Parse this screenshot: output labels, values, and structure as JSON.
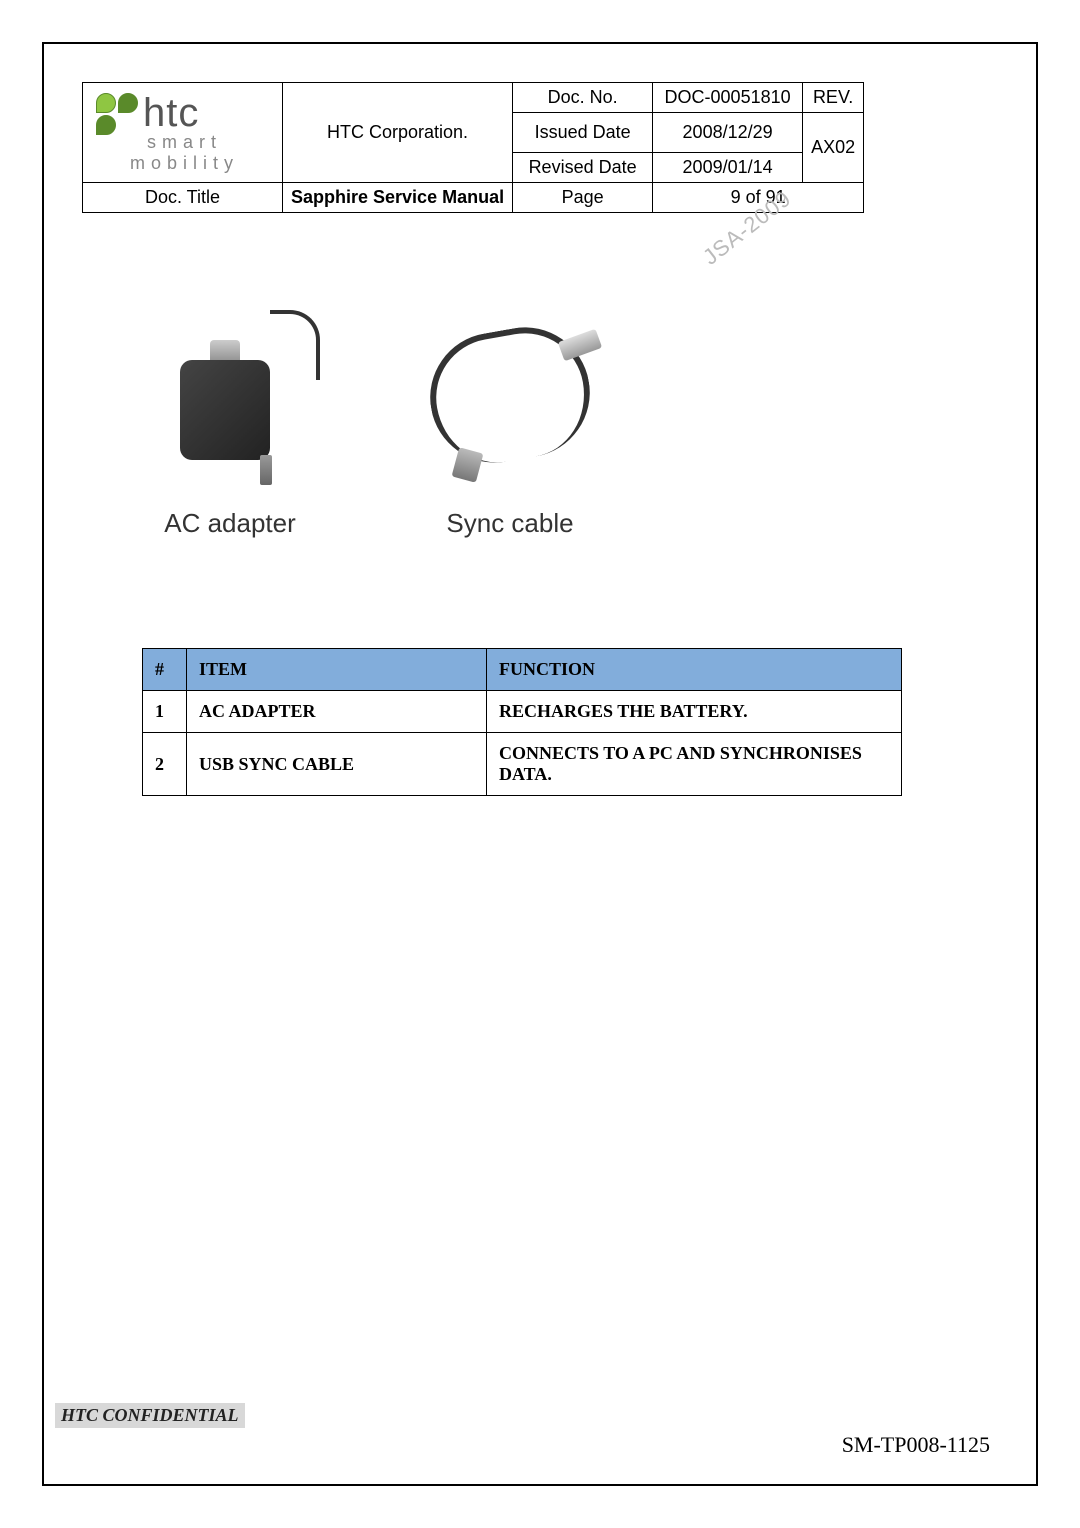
{
  "header": {
    "logo_text": "htc",
    "tagline": "smart mobility",
    "company": "HTC Corporation.",
    "doc_no_label": "Doc. No.",
    "doc_no_value": "DOC-00051810",
    "rev_label": "REV.",
    "rev_value": "AX02",
    "issued_label": "Issued Date",
    "issued_value": "2008/12/29",
    "revised_label": "Revised Date",
    "revised_value": "2009/01/14",
    "title_label": "Doc. Title",
    "title_value": "Sapphire Service Manual",
    "page_label": "Page",
    "page_value": "9 of 91"
  },
  "watermark": "JSA-2009",
  "images": {
    "adapter_caption": "AC adapter",
    "cable_caption": "Sync cable"
  },
  "items_table": {
    "header_bg": "#82addb",
    "columns": [
      "#",
      "ITEM",
      "FUNCTION"
    ],
    "rows": [
      [
        "1",
        "AC ADAPTER",
        "RECHARGES THE BATTERY."
      ],
      [
        "2",
        "USB SYNC CABLE",
        "CONNECTS TO A PC AND SYNCHRONISES DATA."
      ]
    ]
  },
  "footer": {
    "confidential": "HTC CONFIDENTIAL",
    "code": "SM-TP008-1125"
  }
}
